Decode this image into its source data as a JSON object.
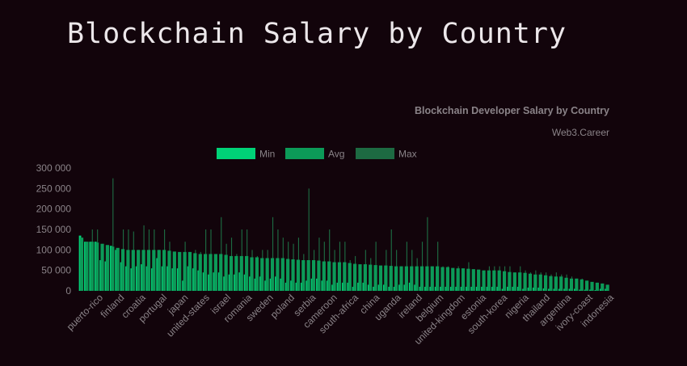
{
  "page": {
    "heading": "Blockchain Salary by Country"
  },
  "chart_data": {
    "type": "bar",
    "title": "Blockchain Developer Salary by Country",
    "subtitle": "Web3.Career",
    "legend_position": "top",
    "xlabel": "",
    "ylabel": "",
    "ylim": [
      0,
      300000
    ],
    "yticks": [
      0,
      50000,
      100000,
      150000,
      200000,
      250000,
      300000
    ],
    "ytick_labels": [
      "0",
      "50 000",
      "100 000",
      "150 000",
      "200 000",
      "250 000",
      "300 000"
    ],
    "grid": false,
    "visible_category_labels": [
      "puerto-rico",
      "finland",
      "croatia",
      "portugal",
      "japan",
      "united-states",
      "israel",
      "romania",
      "sweden",
      "poland",
      "serbia",
      "cameroon",
      "south-africa",
      "china",
      "uganda",
      "ireland",
      "belgium",
      "united-kingdom",
      "estonia",
      "south-korea",
      "nigeria",
      "thailand",
      "argentina",
      "ivory-coast",
      "indonesia"
    ],
    "colors": {
      "Min": "#00d277",
      "Avg": "#0c9a58",
      "Max": "#1d6a42"
    },
    "series": [
      {
        "name": "Min",
        "values": [
          135000,
          120000,
          120000,
          120000,
          75000,
          72000,
          110000,
          100000,
          70000,
          60000,
          55000,
          60000,
          65000,
          60000,
          55000,
          80000,
          60000,
          60000,
          55000,
          55000,
          25000,
          60000,
          55000,
          50000,
          45000,
          40000,
          45000,
          45000,
          35000,
          40000,
          40000,
          45000,
          40000,
          35000,
          30000,
          35000,
          25000,
          30000,
          35000,
          30000,
          20000,
          25000,
          20000,
          20000,
          25000,
          30000,
          30000,
          25000,
          25000,
          15000,
          20000,
          20000,
          20000,
          10000,
          20000,
          20000,
          15000,
          10000,
          15000,
          15000,
          10000,
          10000,
          15000,
          15000,
          20000,
          15000,
          10000,
          10000,
          10000,
          10000,
          10000,
          10000,
          10000,
          10000,
          10000,
          10000,
          10000,
          10000,
          10000,
          10000,
          10000,
          10000,
          5000,
          10000,
          10000,
          10000,
          5000,
          8000,
          8000,
          8000,
          6000,
          5000,
          5000,
          5000,
          5000,
          5000,
          5000,
          3000,
          3000,
          3000,
          2000,
          5000,
          5000
        ]
      },
      {
        "name": "Avg",
        "values": [
          130000,
          120000,
          120000,
          118000,
          115000,
          112000,
          108000,
          105000,
          102000,
          100000,
          100000,
          100000,
          100000,
          100000,
          100000,
          100000,
          100000,
          98000,
          96000,
          95000,
          95000,
          95000,
          92000,
          90000,
          90000,
          90000,
          90000,
          90000,
          88000,
          85000,
          85000,
          85000,
          85000,
          82000,
          82000,
          80000,
          80000,
          80000,
          80000,
          80000,
          78000,
          77000,
          76000,
          75000,
          75000,
          75000,
          74000,
          72000,
          72000,
          70000,
          70000,
          70000,
          68000,
          66000,
          65000,
          65000,
          64000,
          63000,
          62000,
          62000,
          61000,
          60000,
          60000,
          60000,
          60000,
          60000,
          60000,
          60000,
          60000,
          60000,
          58000,
          58000,
          56000,
          55000,
          55000,
          54000,
          53000,
          52000,
          50000,
          50000,
          50000,
          50000,
          48000,
          46000,
          45000,
          45000,
          44000,
          42000,
          40000,
          40000,
          38000,
          36000,
          35000,
          35000,
          32000,
          30000,
          30000,
          28000,
          25000,
          22000,
          20000,
          18000,
          15000
        ]
      },
      {
        "name": "Max",
        "values": [
          130000,
          120000,
          150000,
          150000,
          115000,
          110000,
          275000,
          100000,
          150000,
          150000,
          145000,
          100000,
          160000,
          150000,
          150000,
          100000,
          150000,
          120000,
          90000,
          90000,
          120000,
          90000,
          100000,
          95000,
          150000,
          150000,
          80000,
          180000,
          115000,
          130000,
          90000,
          150000,
          150000,
          100000,
          85000,
          100000,
          100000,
          180000,
          150000,
          130000,
          120000,
          115000,
          130000,
          90000,
          250000,
          100000,
          130000,
          120000,
          150000,
          100000,
          120000,
          120000,
          75000,
          85000,
          60000,
          100000,
          80000,
          120000,
          60000,
          100000,
          150000,
          100000,
          60000,
          120000,
          100000,
          80000,
          120000,
          180000,
          50000,
          120000,
          60000,
          60000,
          50000,
          60000,
          50000,
          70000,
          50000,
          50000,
          50000,
          60000,
          60000,
          60000,
          60000,
          60000,
          45000,
          60000,
          50000,
          45000,
          50000,
          45000,
          45000,
          40000,
          45000,
          40000,
          40000,
          35000,
          30000,
          30000,
          25000,
          20000,
          20000,
          18000,
          15000
        ]
      }
    ]
  }
}
